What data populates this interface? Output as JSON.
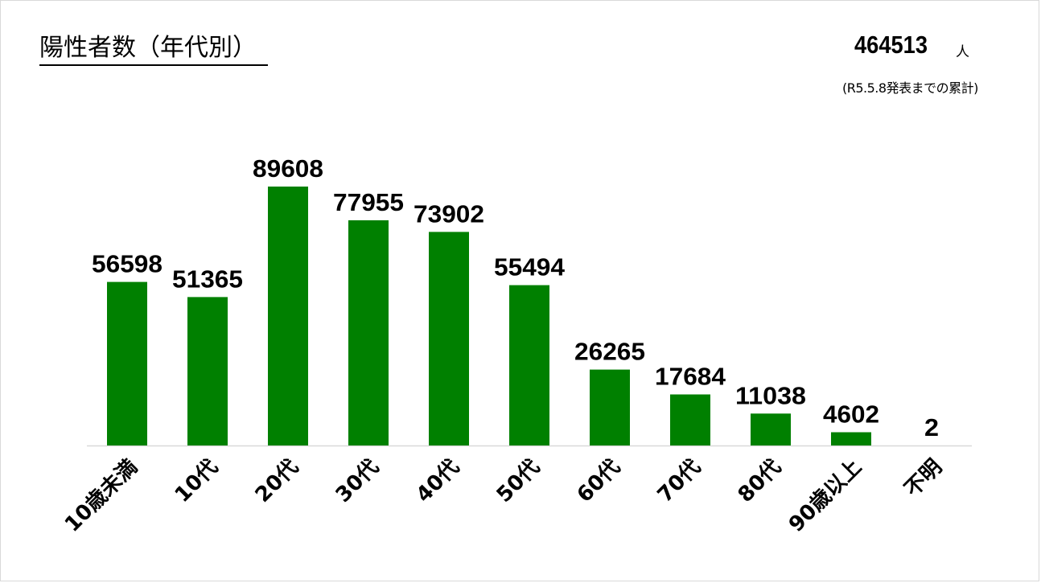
{
  "header": {
    "title": "陽性者数（年代別）",
    "total_value": "464513",
    "total_unit": "人",
    "note": "(R5.5.8発表までの累計)"
  },
  "chart_data": {
    "type": "bar",
    "title": "陽性者数（年代別）",
    "xlabel": "",
    "ylabel": "",
    "categories": [
      "10歳未満",
      "10代",
      "20代",
      "30代",
      "40代",
      "50代",
      "60代",
      "70代",
      "80代",
      "90歳以上",
      "不明"
    ],
    "values": [
      56598,
      51365,
      89608,
      77955,
      73902,
      55494,
      26265,
      17684,
      11038,
      4602,
      2
    ],
    "ylim": [
      0,
      100000
    ],
    "bar_color": "#008000",
    "grid": false,
    "legend": "none",
    "data_labels": true
  }
}
